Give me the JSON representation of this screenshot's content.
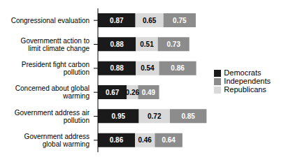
{
  "chart_data": {
    "type": "bar",
    "orientation": "horizontal",
    "stacked": true,
    "data_labels": true,
    "tick_labels": "y",
    "categories": [
      "Congressional evaluation",
      "Governmentt action to limit climate change",
      "President fight carbon pollution",
      "Concerned about global warming",
      "Government address air pollution",
      "Government address global warming"
    ],
    "series": [
      {
        "name": "Democrats",
        "color": "#1a1a1a",
        "values": [
          0.87,
          0.88,
          0.88,
          0.67,
          0.95,
          0.86
        ]
      },
      {
        "name": "Republicans",
        "color": "#d9d9d9",
        "values": [
          0.65,
          0.51,
          0.54,
          0.26,
          0.72,
          0.46
        ]
      },
      {
        "name": "Independents",
        "color": "#8c8c8c",
        "values": [
          0.75,
          0.73,
          0.86,
          0.49,
          0.85,
          0.64
        ]
      }
    ],
    "xlim": [
      0,
      2.6
    ],
    "xticks": [
      0,
      2.6
    ],
    "legend": "right"
  }
}
